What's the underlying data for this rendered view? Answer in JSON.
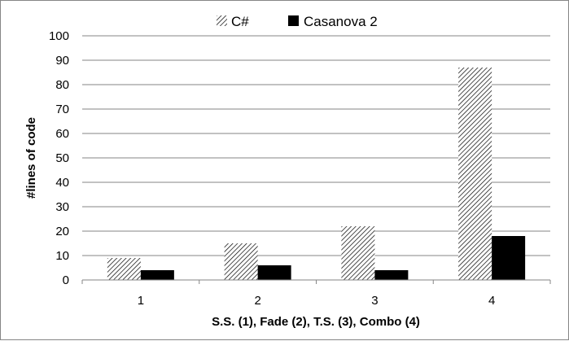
{
  "chart_data": {
    "type": "bar",
    "categories": [
      "1",
      "2",
      "3",
      "4"
    ],
    "series": [
      {
        "name": "C#",
        "values": [
          9,
          15,
          22,
          87
        ],
        "fill": "hatched"
      },
      {
        "name": "Casanova 2",
        "values": [
          4,
          6,
          4,
          18
        ],
        "color": "#000000"
      }
    ],
    "xlabel": "S.S. (1), Fade (2), T.S. (3), Combo (4)",
    "ylabel": "#lines of  code",
    "ylim": [
      0,
      100
    ],
    "yticks": [
      "0",
      "10",
      "20",
      "30",
      "40",
      "50",
      "60",
      "70",
      "80",
      "90",
      "100"
    ],
    "grid": true,
    "legend": "top-center"
  }
}
